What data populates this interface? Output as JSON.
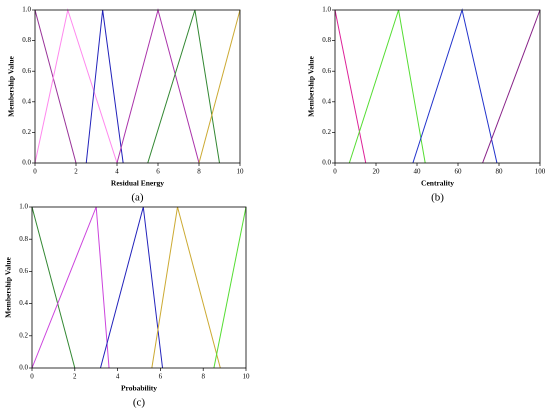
{
  "chart_data": [
    {
      "type": "line",
      "label": "(a)",
      "xlabel": "Residual Energy",
      "ylabel": "Membership Value",
      "xlim": [
        0,
        10
      ],
      "ylim": [
        0,
        1
      ],
      "xticks": [
        0,
        2,
        4,
        6,
        8,
        10
      ],
      "yticks": [
        {
          "value": 0,
          "label": "0.0"
        },
        {
          "value": 0.2,
          "label": "0.2"
        },
        {
          "value": 0.4,
          "label": "0.4"
        },
        {
          "value": 0.6,
          "label": "0.6"
        },
        {
          "value": 0.8,
          "label": "0.8"
        },
        {
          "value": 1,
          "label": "1.0"
        }
      ],
      "series": [
        {
          "color": "#993399",
          "x": [
            0,
            2
          ],
          "values": [
            1,
            0
          ]
        },
        {
          "color": "#ff88ee",
          "x": [
            0,
            1.6,
            4
          ],
          "values": [
            0,
            1,
            0
          ]
        },
        {
          "color": "#2222bb",
          "x": [
            2.5,
            3.3,
            4.3
          ],
          "values": [
            0,
            1,
            0
          ]
        },
        {
          "color": "#aa33aa",
          "x": [
            4,
            6,
            8
          ],
          "values": [
            0,
            1,
            0
          ]
        },
        {
          "color": "#338833",
          "x": [
            5.5,
            7.8,
            9
          ],
          "values": [
            0,
            1,
            0
          ]
        },
        {
          "color": "#ccaa33",
          "x": [
            8,
            10
          ],
          "values": [
            0,
            1
          ]
        }
      ]
    },
    {
      "type": "line",
      "label": "(b)",
      "xlabel": "Centrality",
      "ylabel": "Membership Value",
      "xlim": [
        0,
        100
      ],
      "ylim": [
        0,
        1
      ],
      "xticks": [
        0,
        20,
        40,
        60,
        80,
        100
      ],
      "yticks": [
        {
          "value": 0,
          "label": "0.0"
        },
        {
          "value": 0.2,
          "label": "0.2"
        },
        {
          "value": 0.4,
          "label": "0.4"
        },
        {
          "value": 0.6,
          "label": "0.6"
        },
        {
          "value": 0.8,
          "label": "0.8"
        },
        {
          "value": 1,
          "label": "1.0"
        }
      ],
      "series": [
        {
          "color": "#dd2299",
          "x": [
            0,
            15
          ],
          "values": [
            1,
            0
          ]
        },
        {
          "color": "#55dd33",
          "x": [
            7,
            31,
            44
          ],
          "values": [
            0,
            1,
            0
          ]
        },
        {
          "color": "#2233cc",
          "x": [
            38,
            62,
            79
          ],
          "values": [
            0,
            1,
            0
          ]
        },
        {
          "color": "#882288",
          "x": [
            72,
            100
          ],
          "values": [
            0,
            1
          ]
        }
      ]
    },
    {
      "type": "line",
      "label": "(c)",
      "xlabel": "Probability",
      "ylabel": "Membership Value",
      "xlim": [
        0,
        10
      ],
      "ylim": [
        0,
        1
      ],
      "xticks": [
        0,
        2,
        4,
        6,
        8,
        10
      ],
      "yticks": [
        {
          "value": 0,
          "label": "0.0"
        },
        {
          "value": 0.2,
          "label": "0.2"
        },
        {
          "value": 0.4,
          "label": "0.4"
        },
        {
          "value": 0.6,
          "label": "0.6"
        },
        {
          "value": 0.8,
          "label": "0.8"
        },
        {
          "value": 1,
          "label": "1.0"
        }
      ],
      "series": [
        {
          "color": "#338833",
          "x": [
            0,
            2
          ],
          "values": [
            1,
            0
          ]
        },
        {
          "color": "#cc44dd",
          "x": [
            0,
            3,
            3.6
          ],
          "values": [
            0,
            1,
            0
          ]
        },
        {
          "color": "#2222bb",
          "x": [
            3.2,
            5.2,
            6.1
          ],
          "values": [
            0,
            1,
            0
          ]
        },
        {
          "color": "#ccaa33",
          "x": [
            5.6,
            6.8,
            8.8
          ],
          "values": [
            0,
            1,
            0
          ]
        },
        {
          "color": "#55dd33",
          "x": [
            8.5,
            10
          ],
          "values": [
            0,
            1
          ]
        }
      ]
    }
  ]
}
